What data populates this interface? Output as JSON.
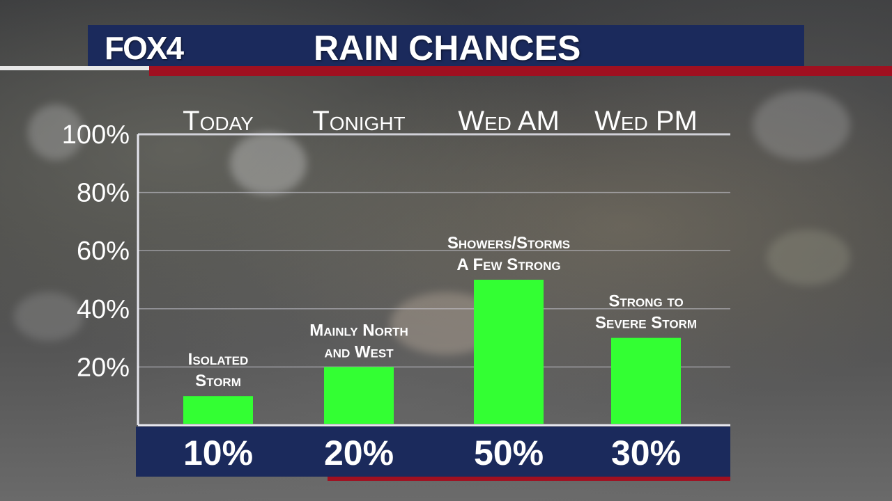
{
  "header": {
    "logo": "FOX4",
    "title": "RAIN CHANCES"
  },
  "colors": {
    "header_blue": "#1b2a5c",
    "accent_red": "#a01020",
    "bar_green": "#33ff33"
  },
  "chart_data": {
    "type": "bar",
    "title": "RAIN CHANCES",
    "categories": [
      "Today",
      "Tonight",
      "Wed AM",
      "Wed PM"
    ],
    "values": [
      10,
      20,
      50,
      30
    ],
    "value_labels": [
      "10%",
      "20%",
      "50%",
      "30%"
    ],
    "annotations": [
      [
        "Isolated",
        "Storm"
      ],
      [
        "Mainly North",
        "and West"
      ],
      [
        "Showers/Storms",
        "A Few Strong"
      ],
      [
        "Strong to",
        "Severe Storm"
      ]
    ],
    "y_ticks": [
      20,
      40,
      60,
      80,
      100
    ],
    "y_tick_labels": [
      "20%",
      "40%",
      "60%",
      "80%",
      "100%"
    ],
    "ylim": [
      0,
      100
    ],
    "grid": true,
    "xlabel": "",
    "ylabel": ""
  }
}
